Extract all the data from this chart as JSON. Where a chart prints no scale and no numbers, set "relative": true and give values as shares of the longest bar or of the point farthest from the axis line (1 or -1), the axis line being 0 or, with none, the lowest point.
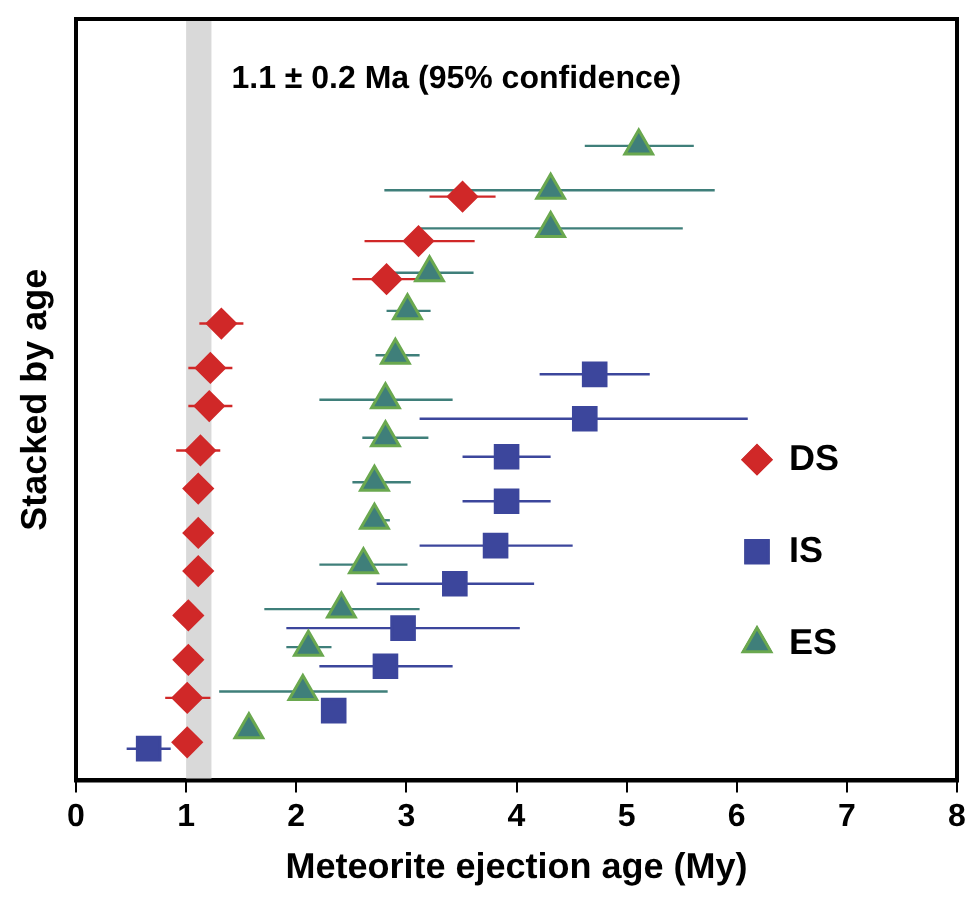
{
  "chart_data": {
    "type": "scatter",
    "xlabel": "Meteorite ejection age (My)",
    "ylabel": "Stacked by age",
    "relative": true,
    "xlim": [
      0,
      8
    ],
    "xticks": [
      0,
      1,
      2,
      3,
      4,
      5,
      6,
      7,
      8
    ],
    "grid": false,
    "legend": "right",
    "bands": [
      {
        "axis": "x",
        "from": 1.0,
        "to": 1.23,
        "label": "1.1 ± 0.2 Ma (95% confidence)",
        "color": "#d9d9d9"
      }
    ],
    "series": [
      {
        "name": "DS",
        "color": "#d02828",
        "marker": "diamond",
        "x": [
          3.51,
          3.11,
          2.82,
          1.32,
          1.22,
          1.21,
          1.13,
          1.11,
          1.11,
          1.11,
          1.02,
          1.02,
          1.01,
          1.01
        ],
        "values": [
          0.92,
          0.85,
          0.79,
          0.72,
          0.65,
          0.59,
          0.52,
          0.46,
          0.39,
          0.33,
          0.26,
          0.19,
          0.13,
          0.06
        ],
        "xerrors": [
          [
            3.21,
            3.81
          ],
          [
            2.62,
            3.62
          ],
          [
            2.51,
            3.12
          ],
          [
            1.12,
            1.52
          ],
          [
            1.02,
            1.42
          ],
          [
            1.02,
            1.42
          ],
          [
            0.91,
            1.31
          ],
          null,
          null,
          null,
          null,
          null,
          [
            0.81,
            1.22
          ],
          null
        ]
      },
      {
        "name": "IS",
        "color": "#3c469c",
        "marker": "square",
        "x": [
          4.71,
          4.62,
          3.91,
          3.91,
          3.81,
          3.44,
          2.97,
          2.81,
          2.34,
          0.66
        ],
        "values": [
          0.64,
          0.57,
          0.51,
          0.44,
          0.37,
          0.31,
          0.24,
          0.18,
          0.11,
          0.05
        ],
        "xerrors": [
          [
            4.21,
            5.21
          ],
          [
            3.12,
            6.1
          ],
          [
            3.51,
            4.31
          ],
          [
            3.51,
            4.31
          ],
          [
            3.12,
            4.51
          ],
          [
            2.73,
            4.16
          ],
          [
            1.91,
            4.03
          ],
          [
            2.21,
            3.42
          ],
          null,
          [
            0.46,
            0.86
          ]
        ]
      },
      {
        "name": "ES",
        "color": "#3f7f7a",
        "marker": "triangle",
        "x": [
          5.11,
          4.31,
          4.31,
          3.21,
          3.01,
          2.9,
          2.81,
          2.81,
          2.71,
          2.71,
          2.61,
          2.41,
          2.11,
          2.06,
          1.57
        ],
        "values": [
          1.0,
          0.93,
          0.87,
          0.8,
          0.74,
          0.67,
          0.6,
          0.54,
          0.47,
          0.41,
          0.34,
          0.27,
          0.21,
          0.14,
          0.08
        ],
        "xerrors": [
          [
            4.62,
            5.61
          ],
          [
            2.8,
            5.8
          ],
          [
            3.13,
            5.51
          ],
          [
            2.82,
            3.61
          ],
          [
            2.82,
            3.22
          ],
          [
            2.72,
            3.12
          ],
          [
            2.21,
            3.42
          ],
          [
            2.6,
            3.2
          ],
          [
            2.51,
            3.04
          ],
          [
            2.65,
            2.85
          ],
          [
            2.21,
            3.01
          ],
          [
            1.71,
            3.12
          ],
          [
            1.91,
            2.32
          ],
          [
            1.3,
            2.83
          ],
          null
        ]
      }
    ]
  }
}
